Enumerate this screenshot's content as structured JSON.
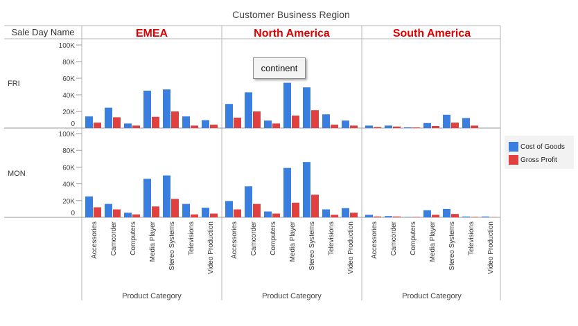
{
  "chart_data": {
    "type": "bar",
    "title": "Customer Business Region",
    "row_header": "Sale Day Name",
    "columns": [
      "EMEA",
      "North America",
      "South America"
    ],
    "rows": [
      "FRI",
      "MON"
    ],
    "xlabel": "Product Category",
    "categories": [
      "Accessories",
      "Camcorder",
      "Computers",
      "Media Player",
      "Stereo Systems",
      "Televisions",
      "Video Production"
    ],
    "ylim": [
      0,
      105000
    ],
    "yticks": [
      0,
      20000,
      40000,
      60000,
      80000,
      100000
    ],
    "ytick_labels": [
      "0",
      "20K",
      "40K",
      "60K",
      "80K",
      "100K"
    ],
    "legend_position": "right",
    "colors": {
      "cost": "#3a7ee0",
      "profit": "#e04040",
      "header": "#e00000"
    },
    "series": [
      {
        "name": "Cost of Goods",
        "color": "#3a7ee0"
      },
      {
        "name": "Gross Profit",
        "color": "#e04040"
      }
    ],
    "panels": [
      {
        "row": "FRI",
        "column": "EMEA",
        "cost": [
          14000,
          24500,
          5500,
          45000,
          46500,
          14000,
          9500
        ],
        "profit": [
          6500,
          13000,
          3000,
          13500,
          20000,
          3000,
          4000
        ]
      },
      {
        "row": "FRI",
        "column": "North America",
        "cost": [
          29000,
          43000,
          9000,
          54500,
          49000,
          16500,
          9000
        ],
        "profit": [
          12500,
          20000,
          5500,
          15000,
          21500,
          4000,
          3000
        ]
      },
      {
        "row": "FRI",
        "column": "South America",
        "cost": [
          3000,
          3000,
          800,
          6000,
          16000,
          12000,
          0
        ],
        "profit": [
          1200,
          1800,
          700,
          2500,
          6500,
          3000,
          0
        ]
      },
      {
        "row": "MON",
        "column": "EMEA",
        "cost": [
          25000,
          16000,
          5500,
          46000,
          50000,
          16000,
          11500
        ],
        "profit": [
          12000,
          9500,
          3500,
          13000,
          22000,
          3500,
          4500
        ]
      },
      {
        "row": "MON",
        "column": "North America",
        "cost": [
          19500,
          37000,
          7000,
          59000,
          66000,
          9500,
          11000
        ],
        "profit": [
          9500,
          16000,
          4500,
          17500,
          27000,
          3000,
          5500
        ]
      },
      {
        "row": "MON",
        "column": "South America",
        "cost": [
          3000,
          1500,
          500,
          8500,
          10000,
          1000,
          1000
        ],
        "profit": [
          1000,
          1000,
          500,
          3000,
          4000,
          500,
          300
        ]
      }
    ]
  },
  "tooltip": {
    "label": "continent"
  },
  "icons": {
    "legend_swatch": "square-swatch"
  }
}
